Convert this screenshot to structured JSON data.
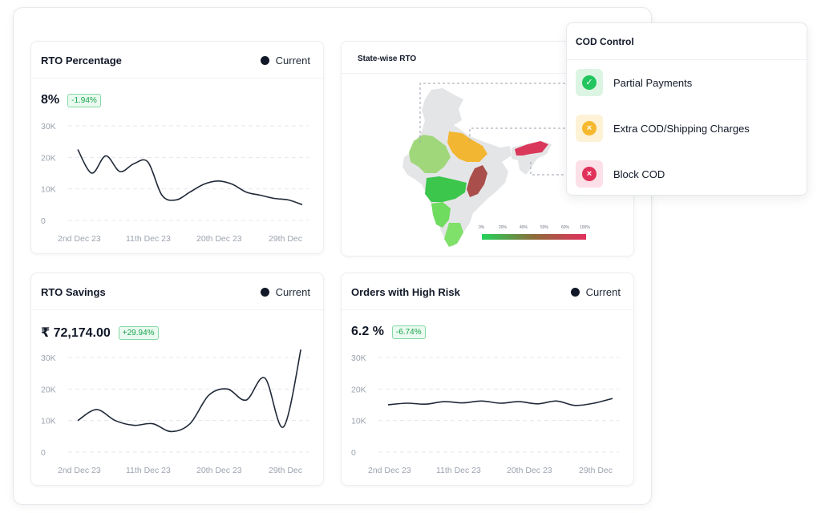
{
  "colors": {
    "line": "#1f2937",
    "badge_green": "#16a34a",
    "partial_green": "#22c55e",
    "extra_amber": "#f5b82e",
    "block_red": "#e0315a"
  },
  "cards": {
    "rto_percentage": {
      "title": "RTO Percentage",
      "legend": "Current",
      "value": "8%",
      "change": "-1.94%"
    },
    "rto_savings": {
      "title": "RTO Savings",
      "legend": "Current",
      "value": "₹ 72,174.00",
      "change": "+29.94%"
    },
    "high_risk": {
      "title": "Orders with High Risk",
      "legend": "Current",
      "value": "6.2 %",
      "change": "-6.74%"
    }
  },
  "map": {
    "title": "State-wise RTO",
    "scale_labels": [
      "0%",
      "20%",
      "40%",
      "50%",
      "60%",
      "100%"
    ]
  },
  "cod_control": {
    "title": "COD Control",
    "items": [
      {
        "label": "Partial Payments",
        "icon": "check-icon",
        "glyph": "✓"
      },
      {
        "label": "Extra COD/Shipping Charges",
        "icon": "close-icon",
        "glyph": "×"
      },
      {
        "label": "Block COD",
        "icon": "close-icon",
        "glyph": "×"
      }
    ]
  },
  "chart_data": [
    {
      "type": "line",
      "title": "RTO Percentage",
      "y_ticks": [
        "30K",
        "20K",
        "10K",
        "0"
      ],
      "x_ticks": [
        "2nd Dec 23",
        "11th Dec 23",
        "20th Dec 23",
        "29th Dec"
      ],
      "ylim": [
        0,
        30000
      ],
      "x": [
        "2nd Dec 23",
        "",
        "",
        "",
        "11th Dec 23",
        "",
        "",
        "",
        "",
        "20th Dec 23",
        "",
        "",
        "",
        "",
        "",
        "29th Dec",
        ""
      ],
      "series": [
        {
          "name": "Current",
          "values": [
            22500,
            15000,
            20500,
            15500,
            18000,
            18500,
            8000,
            6500,
            9000,
            11500,
            12500,
            11500,
            9000,
            8000,
            7000,
            6500,
            5000
          ]
        }
      ]
    },
    {
      "type": "line",
      "title": "RTO Savings",
      "y_ticks": [
        "30K",
        "20K",
        "10K",
        "0"
      ],
      "x_ticks": [
        "2nd Dec 23",
        "11th Dec 23",
        "20th Dec 23",
        "29th Dec"
      ],
      "ylim": [
        0,
        30000
      ],
      "series": [
        {
          "name": "Current",
          "values": [
            10000,
            13500,
            10000,
            8500,
            9000,
            6500,
            9000,
            18000,
            20000,
            16500,
            23500,
            8000,
            35000
          ]
        }
      ]
    },
    {
      "type": "line",
      "title": "Orders with High Risk",
      "y_ticks": [
        "30K",
        "20K",
        "10K",
        "0"
      ],
      "x_ticks": [
        "2nd Dec 23",
        "11th Dec 23",
        "20th Dec 23",
        "29th Dec"
      ],
      "ylim": [
        0,
        30000
      ],
      "series": [
        {
          "name": "Current",
          "values": [
            15000,
            15500,
            15200,
            16000,
            15600,
            16200,
            15500,
            16000,
            15300,
            16200,
            14800,
            15500,
            17000
          ]
        }
      ]
    }
  ]
}
